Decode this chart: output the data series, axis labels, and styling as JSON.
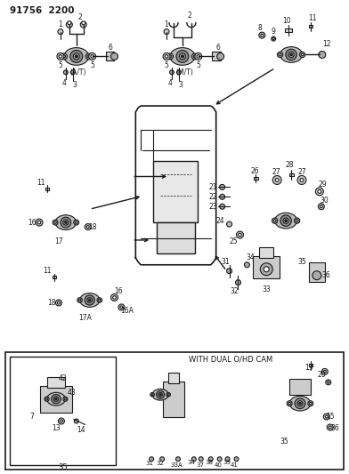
{
  "bg_color": "#ffffff",
  "fg_color": "#1a1a1a",
  "fig_width": 3.92,
  "fig_height": 5.33,
  "dpi": 100,
  "header": "91756  2200",
  "bottom_label": "WITH DUAL O/HD CAM",
  "at_label": "(A/T)",
  "mt_label": "(M/T)"
}
